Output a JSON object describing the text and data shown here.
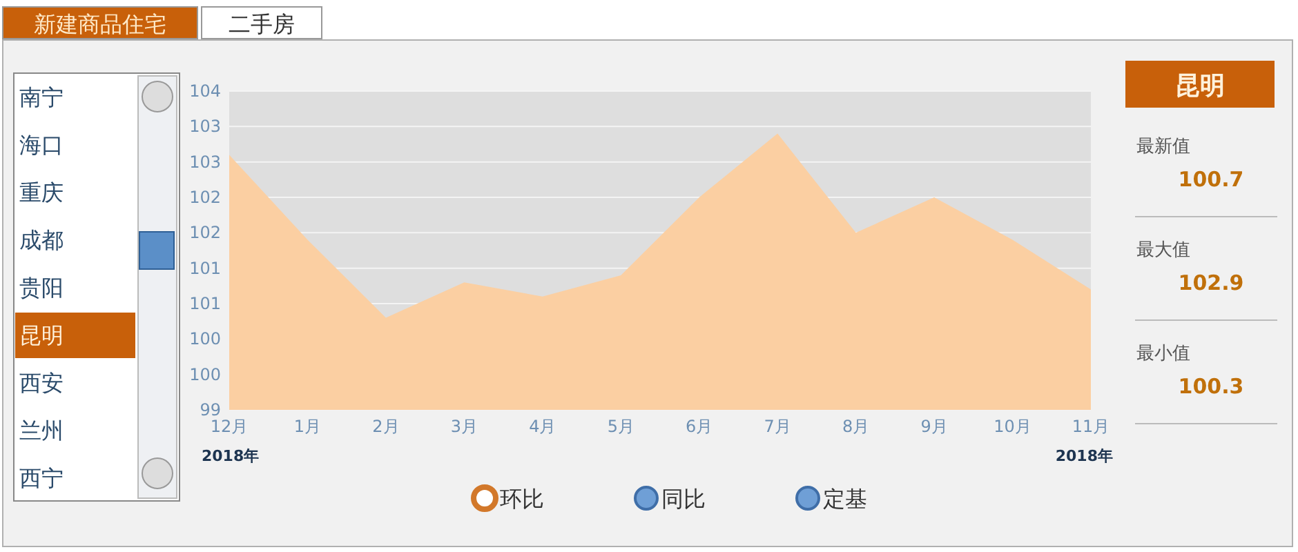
{
  "chart_data": [
    {
      "type": "other",
      "categories": [
        "新建商品住宅",
        "二手房"
      ],
      "annotations": [
        "南宁",
        "海口",
        "重庆",
        "成都",
        "贵阳",
        "昆明",
        "西安",
        "兰州",
        "西宁"
      ]
    },
    {
      "type": "area",
      "categories": [
        "12月",
        "1月",
        "2月",
        "3月",
        "4月",
        "5月",
        "6月",
        "7月",
        "8月",
        "9月",
        "10月",
        "11月"
      ],
      "values": [
        102.6,
        101.4,
        100.3,
        100.8,
        100.6,
        100.9,
        102.0,
        102.9,
        101.5,
        102.0,
        101.4,
        100.7
      ],
      "color": "#fbcfa2",
      "ylim": [
        99,
        103.5
      ],
      "yticks": [
        99,
        {
          "value": 99.5,
          "label": "100"
        },
        100,
        {
          "value": 100.5,
          "label": "101"
        },
        101,
        {
          "value": 101.5,
          "label": "102"
        },
        102,
        {
          "value": 102.5,
          "label": "103"
        },
        103,
        {
          "value": 103.5,
          "label": "104"
        }
      ],
      "grid": "y",
      "annotations": [
        "2018年",
        "2018年"
      ]
    },
    {
      "type": "other",
      "title": "昆明",
      "categories": [
        "最新值",
        "最大值",
        "最小值"
      ],
      "values": [
        100.7,
        102.9,
        100.3
      ],
      "data_labels": true
    },
    {
      "type": "other",
      "categories": [
        "环比",
        "同比",
        "定基"
      ]
    }
  ]
}
